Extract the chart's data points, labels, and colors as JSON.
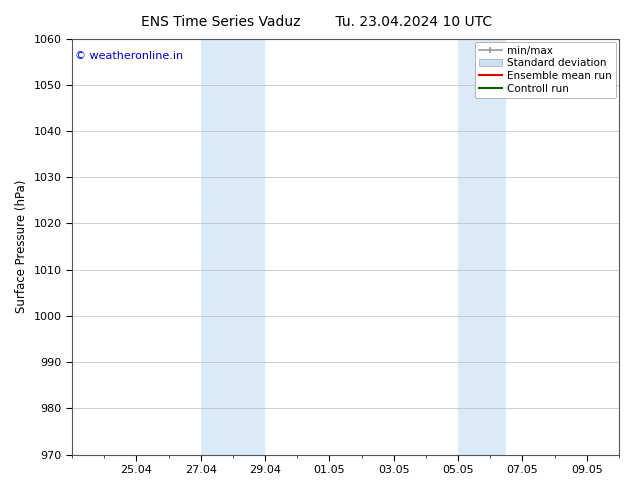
{
  "title_left": "ENS Time Series Vaduz",
  "title_right": "Tu. 23.04.2024 10 UTC",
  "ylabel": "Surface Pressure (hPa)",
  "ylim": [
    970,
    1060
  ],
  "yticks": [
    970,
    980,
    990,
    1000,
    1010,
    1020,
    1030,
    1040,
    1050,
    1060
  ],
  "xtick_labels": [
    "25.04",
    "27.04",
    "29.04",
    "01.05",
    "03.05",
    "05.05",
    "07.05",
    "09.05"
  ],
  "xtick_positions": [
    2,
    4,
    6,
    8,
    10,
    12,
    14,
    16
  ],
  "xlim": [
    0,
    17
  ],
  "shaded_bands": [
    {
      "x_start": 4,
      "x_end": 6
    },
    {
      "x_start": 12,
      "x_end": 13.5
    }
  ],
  "shaded_color": "#daeaf7",
  "copyright_text": "© weatheronline.in",
  "copyright_color": "#0000cc",
  "bg_color": "#ffffff",
  "grid_color": "#bbbbbb",
  "title_fontsize": 10,
  "label_fontsize": 8.5,
  "tick_fontsize": 8,
  "copyright_fontsize": 8
}
